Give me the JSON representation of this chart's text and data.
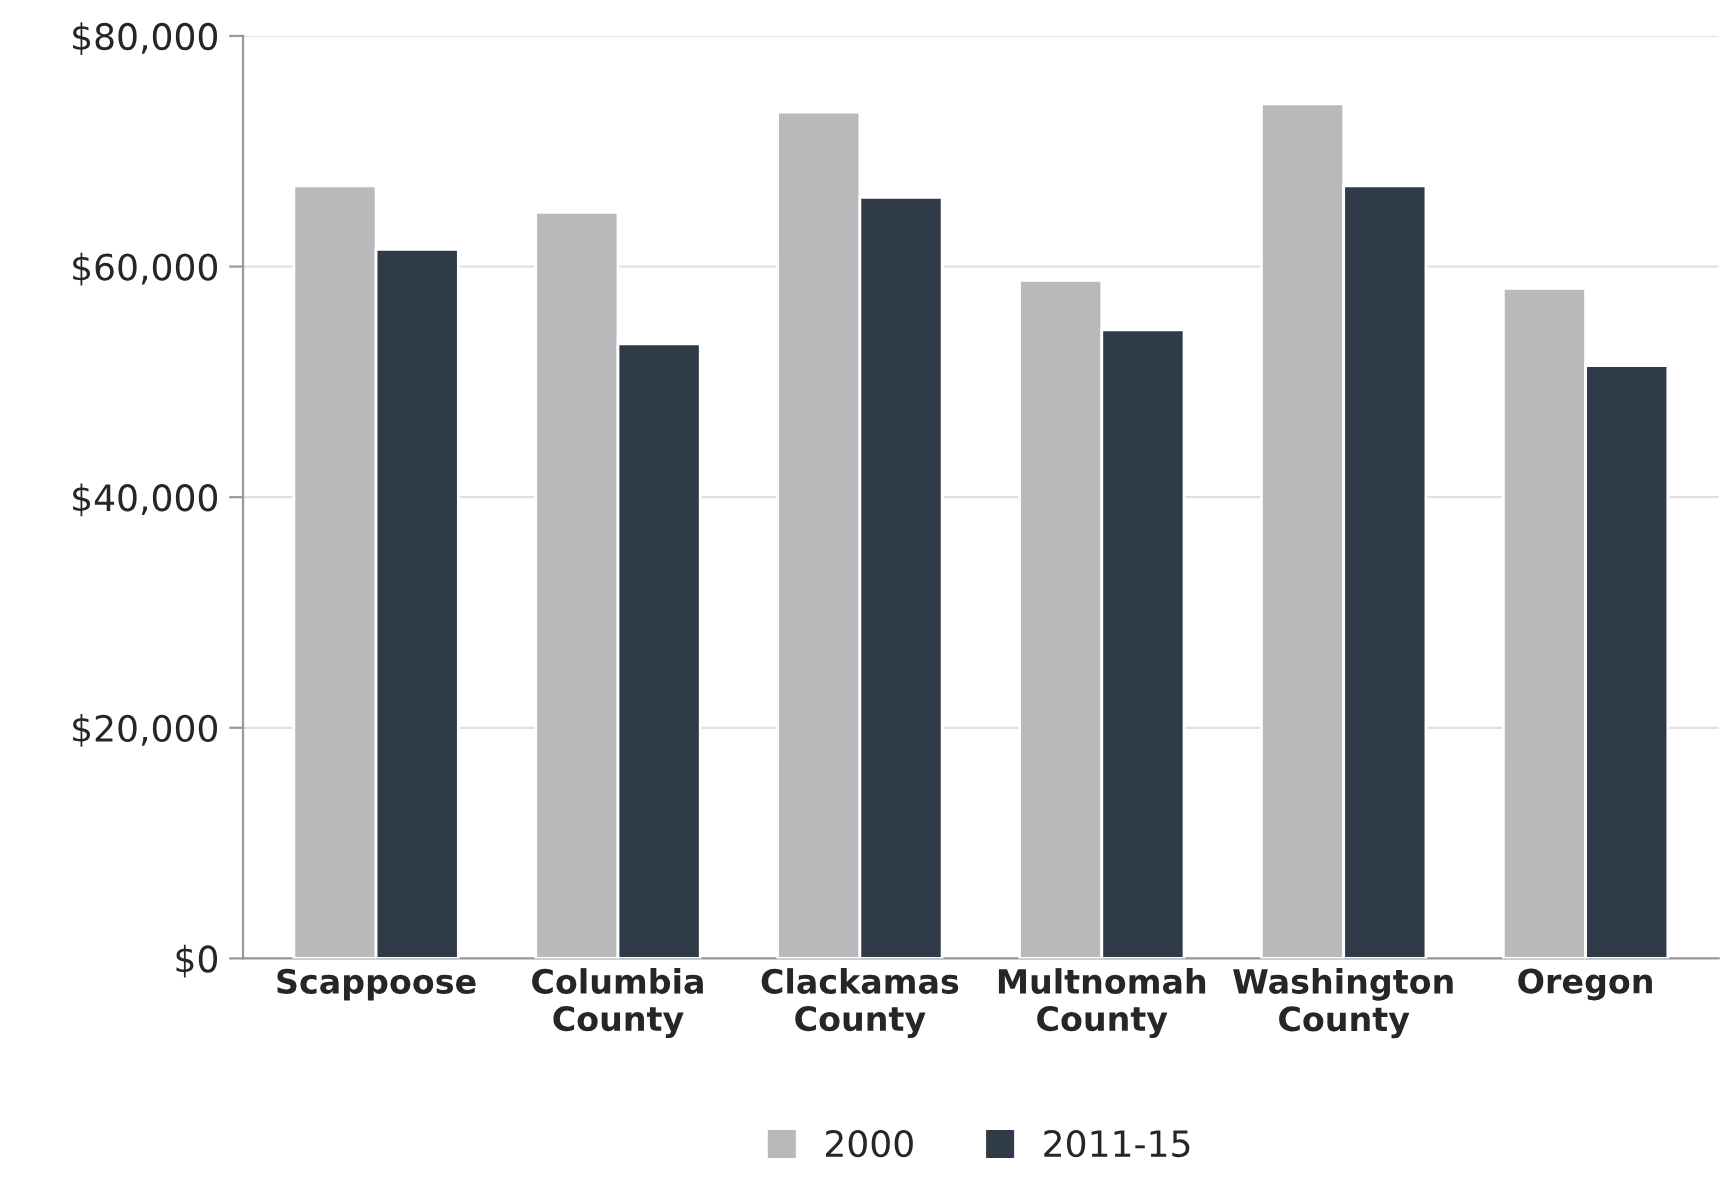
{
  "chart_data": {
    "type": "bar",
    "categories": [
      "Scappoose",
      "Columbia\nCounty",
      "Clackamas\nCounty",
      "Multnomah\nCounty",
      "Washington\nCounty",
      "Oregon"
    ],
    "series": [
      {
        "name": "2000",
        "color": "#b9b9bb",
        "values": [
          67000,
          64700,
          73400,
          58800,
          74100,
          58100
        ]
      },
      {
        "name": "2011-15",
        "color": "#2f3b48",
        "values": [
          61500,
          53300,
          66000,
          54500,
          67000,
          51400
        ]
      }
    ],
    "ylim": [
      0,
      80000
    ],
    "yticks": [
      {
        "value": 0,
        "label": "$0"
      },
      {
        "value": 20000,
        "label": "$20,000"
      },
      {
        "value": 40000,
        "label": "$40,000"
      },
      {
        "value": 60000,
        "label": "$60,000"
      },
      {
        "value": 80000,
        "label": "$80,000"
      }
    ],
    "grid": "y",
    "legend": "bottom"
  }
}
